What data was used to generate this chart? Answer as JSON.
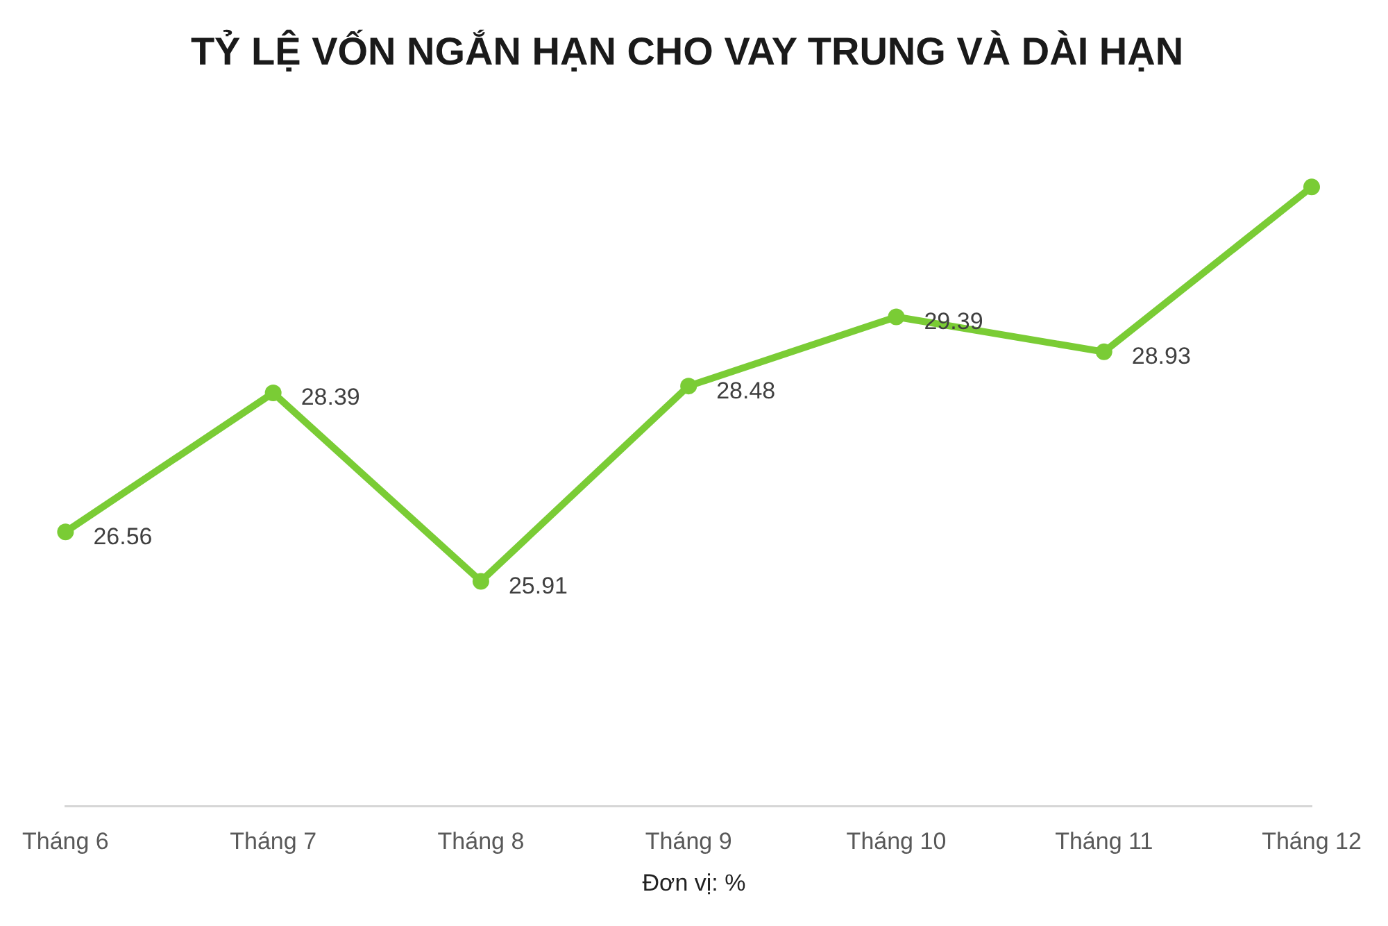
{
  "chart_data": {
    "type": "line",
    "title": "TỶ LỆ VỐN NGẮN HẠN CHO VAY TRUNG VÀ DÀI HẠN",
    "categories": [
      "Tháng 6",
      "Tháng 7",
      "Tháng 8",
      "Tháng 9",
      "Tháng 10",
      "Tháng 11",
      "Tháng 12"
    ],
    "values": [
      26.56,
      28.39,
      25.91,
      28.48,
      29.39,
      28.93,
      31.1
    ],
    "value_labels": [
      "26.56",
      "28.39",
      "25.91",
      "28.48",
      "29.39",
      "28.93",
      null
    ],
    "color": "#7acc35",
    "marker": "circle",
    "line_style": "solid",
    "annotations": [
      "Đơn vị: %"
    ]
  }
}
